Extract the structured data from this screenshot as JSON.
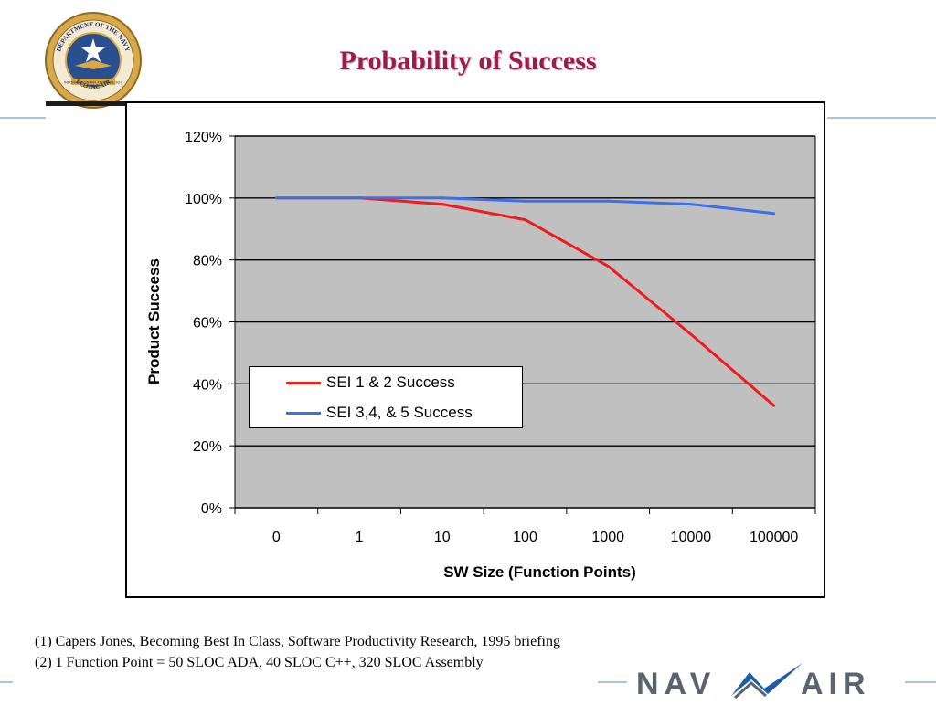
{
  "slide": {
    "title": "Probability of Success",
    "footnotes": [
      "(1) Capers Jones, Becoming Best In Class, Software Productivity Research, 1995 briefing",
      "(2) 1 Function Point = 50 SLOC ADA, 40 SLOC C++, 320 SLOC Assembly"
    ],
    "seal": {
      "text_top": "DEPARTMENT OF THE NAVY",
      "text_band": "INFORMATION AIR TECHNOLOGY",
      "text_bottom": "PEOTACAIR"
    },
    "logo": {
      "left": "NAV",
      "right": "AIR",
      "icon": "navair-swoosh-icon"
    },
    "colors": {
      "title": "#9b1c4a",
      "rule": "#a9c3da",
      "plot_background": "#c0c0c0",
      "logo_text": "#5a6470",
      "logo_swoosh": "#1f5aa6"
    }
  },
  "chart_data": {
    "type": "line",
    "title": "",
    "xlabel": "SW Size (Function Points)",
    "ylabel": "Product Success",
    "categories": [
      "0",
      "1",
      "10",
      "100",
      "1000",
      "10000",
      "100000"
    ],
    "ylim": [
      0,
      120
    ],
    "yticks": [
      "0%",
      "20%",
      "40%",
      "60%",
      "80%",
      "100%",
      "120%"
    ],
    "grid": true,
    "legend_position": "lower-left",
    "series": [
      {
        "name": "SEI 1 & 2 Success",
        "color": "#ee1c1c",
        "values": [
          100,
          100,
          98,
          93,
          78,
          56,
          33
        ]
      },
      {
        "name": "SEI 3,4, & 5 Success",
        "color": "#3c6fe8",
        "values": [
          100,
          100,
          100,
          99,
          99,
          98,
          95
        ]
      }
    ]
  }
}
